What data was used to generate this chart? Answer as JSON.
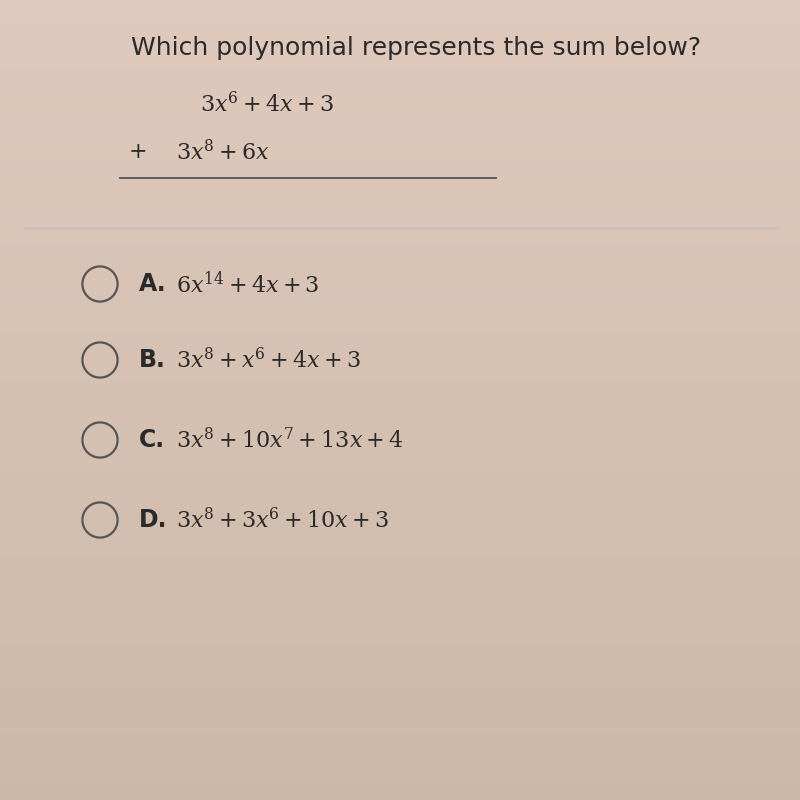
{
  "title": "Which polynomial represents the sum below?",
  "bg_color": "#e8d5c8",
  "bg_gradient_top": "#ddc8bb",
  "bg_gradient_bot": "#d4bfb0",
  "text_color": "#2a2a2a",
  "circle_color": "#555555",
  "divider_color": "#bbbbbb",
  "underline_color": "#555555",
  "title_fontsize": 18,
  "prob_fontsize": 16,
  "opt_label_fontsize": 17,
  "opt_expr_fontsize": 16,
  "options": [
    {
      "label": "A.",
      "expr": "6x^{14} + 4x + 3"
    },
    {
      "label": "B.",
      "expr": "3x^8 + x^6 + 4x + 3"
    },
    {
      "label": "C.",
      "expr": "3x^8 + 10x^7 + 13x + 4"
    },
    {
      "label": "D.",
      "expr": "3x^8 + 3x^6 + 10x + 3"
    }
  ]
}
